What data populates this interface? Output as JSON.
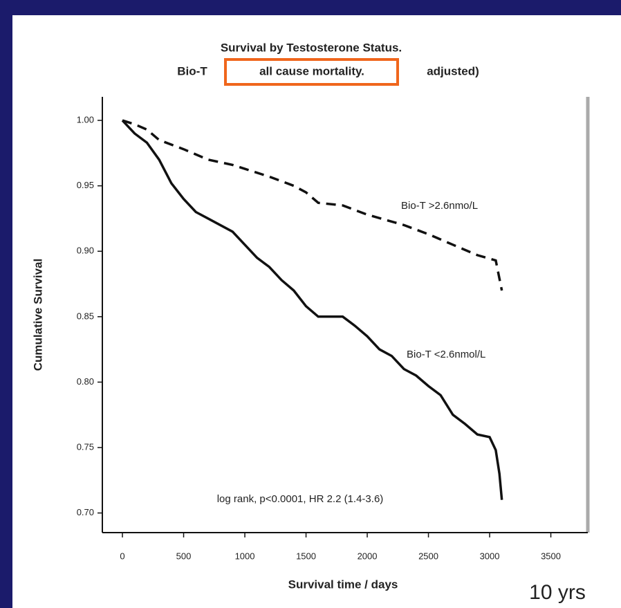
{
  "chart_data": {
    "type": "line",
    "title": "Survival by Testosterone Status.",
    "subtitle": [
      "Bio-T",
      "all cause mortality.",
      "adjusted)"
    ],
    "highlight": 1,
    "highlight_color": "#f0661c",
    "xlabel": "Survival time / days",
    "ylabel": "Cumulative Survival",
    "annotation": "log rank, p<0.0001, HR 2.2 (1.4-3.6)",
    "note": "10 yrs",
    "xlim": [
      -164,
      3802
    ],
    "ylim": [
      0.685,
      1.018
    ],
    "xticks": [
      0,
      500,
      1000,
      1500,
      2000,
      2500,
      3000,
      3500
    ],
    "yticks": [
      {
        "value": 0.7,
        "label": "0.70"
      },
      {
        "value": 0.75,
        "label": "0.75"
      },
      {
        "value": 0.8,
        "label": "0.80"
      },
      {
        "value": 0.85,
        "label": "0.85"
      },
      {
        "value": 0.9,
        "label": "0.90"
      },
      {
        "value": 0.95,
        "label": "0.95"
      },
      {
        "value": 1.0,
        "label": "1.00"
      }
    ],
    "series": [
      {
        "name": "Bio-T >2.6nmo/L",
        "color": "#111111",
        "dashed": true,
        "x": [
          0,
          100,
          200,
          300,
          500,
          700,
          900,
          1000,
          1200,
          1400,
          1500,
          1600,
          1800,
          2000,
          2300,
          2500,
          2700,
          2900,
          3050,
          3100
        ],
        "values": [
          1.0,
          0.997,
          0.993,
          0.985,
          0.978,
          0.97,
          0.966,
          0.963,
          0.957,
          0.95,
          0.945,
          0.937,
          0.935,
          0.928,
          0.92,
          0.913,
          0.905,
          0.897,
          0.893,
          0.87
        ]
      },
      {
        "name": "Bio-T <2.6nmol/L",
        "color": "#111111",
        "dashed": false,
        "x": [
          0,
          100,
          200,
          300,
          400,
          500,
          600,
          700,
          800,
          900,
          1000,
          1100,
          1200,
          1300,
          1400,
          1500,
          1600,
          1700,
          1800,
          1900,
          2000,
          2100,
          2200,
          2300,
          2400,
          2500,
          2600,
          2700,
          2800,
          2900,
          3000,
          3050,
          3080,
          3100
        ],
        "values": [
          1.0,
          0.99,
          0.983,
          0.97,
          0.952,
          0.94,
          0.93,
          0.925,
          0.92,
          0.915,
          0.905,
          0.895,
          0.888,
          0.878,
          0.87,
          0.858,
          0.85,
          0.85,
          0.85,
          0.843,
          0.835,
          0.825,
          0.82,
          0.81,
          0.805,
          0.797,
          0.79,
          0.775,
          0.768,
          0.76,
          0.758,
          0.748,
          0.73,
          0.71
        ]
      }
    ]
  }
}
